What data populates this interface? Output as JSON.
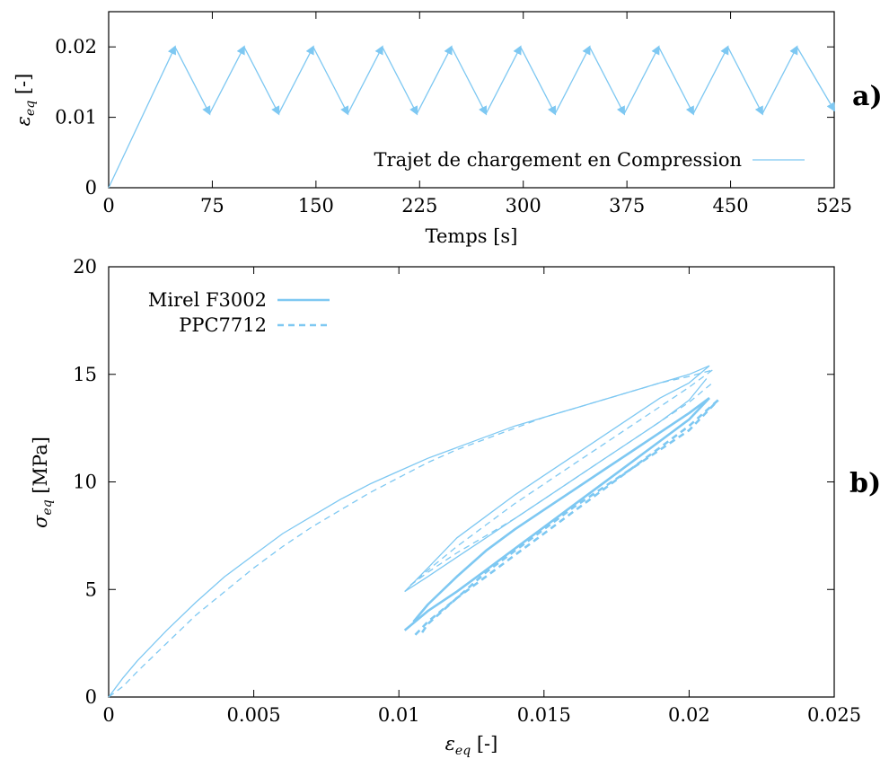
{
  "chart_data": [
    {
      "panel_label": "a)",
      "type": "line",
      "xlabel": "Temps [s]",
      "ylabel": "ε_eq [-]",
      "xlim": [
        0,
        525
      ],
      "ylim": [
        0,
        0.025
      ],
      "xticks": [
        "0",
        "75",
        "150",
        "225",
        "300",
        "375",
        "450",
        "525"
      ],
      "yticks": [
        "0",
        "0.01",
        "0.02"
      ],
      "grid": false,
      "legend_position": "bottom-right",
      "color": "#7EC8F2",
      "series": [
        {
          "name": "Trajet de chargement en Compression",
          "style": "solid-arrows",
          "x": [
            0,
            48,
            73,
            98,
            123,
            148,
            173,
            198,
            223,
            248,
            273,
            298,
            323,
            348,
            373,
            398,
            423,
            448,
            473,
            498,
            525
          ],
          "y": [
            0,
            0.02,
            0.0105,
            0.02,
            0.0105,
            0.02,
            0.0105,
            0.02,
            0.0105,
            0.02,
            0.0105,
            0.02,
            0.0105,
            0.02,
            0.0105,
            0.02,
            0.0105,
            0.02,
            0.0105,
            0.02,
            0.011
          ]
        }
      ]
    },
    {
      "panel_label": "b)",
      "type": "line",
      "xlabel": "ε_eq [-]",
      "ylabel": "σ_eq [MPa]",
      "xlim": [
        0,
        0.025
      ],
      "ylim": [
        0,
        20
      ],
      "xticks": [
        "0",
        "0.005",
        "0.01",
        "0.015",
        "0.02",
        "0.025"
      ],
      "yticks": [
        "0",
        "5",
        "10",
        "15",
        "20"
      ],
      "grid": false,
      "legend_position": "top-left",
      "color": "#7EC8F2",
      "series": [
        {
          "name": "Mirel F3002",
          "style": "solid",
          "first_load": {
            "x": [
              0,
              0.0005,
              0.001,
              0.002,
              0.003,
              0.004,
              0.005,
              0.006,
              0.007,
              0.008,
              0.009,
              0.01,
              0.011,
              0.012,
              0.013,
              0.014,
              0.015,
              0.016,
              0.017,
              0.018,
              0.019,
              0.02,
              0.0207
            ],
            "y": [
              0,
              0.9,
              1.7,
              3.1,
              4.4,
              5.6,
              6.6,
              7.6,
              8.4,
              9.2,
              9.9,
              10.5,
              11.1,
              11.6,
              12.1,
              12.6,
              13.0,
              13.4,
              13.8,
              14.2,
              14.6,
              15.0,
              15.4
            ]
          },
          "cycle_1_unload": {
            "x": [
              0.0207,
              0.02,
              0.019,
              0.018,
              0.017,
              0.016,
              0.015,
              0.014,
              0.013,
              0.012,
              0.011,
              0.0102
            ],
            "y": [
              15.4,
              14.6,
              13.9,
              13.0,
              12.1,
              11.2,
              10.3,
              9.4,
              8.4,
              7.4,
              6.0,
              4.9
            ]
          },
          "cycle_1_reload": {
            "x": [
              0.0102,
              0.011,
              0.012,
              0.013,
              0.014,
              0.015,
              0.016,
              0.017,
              0.018,
              0.019,
              0.02,
              0.0206
            ],
            "y": [
              4.9,
              5.6,
              6.5,
              7.4,
              8.3,
              9.2,
              10.1,
              11.0,
              11.9,
              12.8,
              13.8,
              14.8
            ]
          },
          "stabilized_upper": {
            "x": [
              0.0105,
              0.011,
              0.012,
              0.013,
              0.014,
              0.015,
              0.016,
              0.017,
              0.018,
              0.019,
              0.02,
              0.0207
            ],
            "y": [
              3.5,
              4.3,
              5.6,
              6.8,
              7.8,
              8.7,
              9.6,
              10.5,
              11.4,
              12.3,
              13.2,
              13.9
            ]
          },
          "stabilized_lower": {
            "x": [
              0.0207,
              0.02,
              0.019,
              0.018,
              0.017,
              0.016,
              0.015,
              0.014,
              0.013,
              0.012,
              0.011,
              0.0102
            ],
            "y": [
              13.9,
              12.9,
              11.9,
              10.9,
              9.9,
              8.9,
              7.9,
              6.9,
              5.9,
              4.9,
              4.0,
              3.1
            ]
          }
        },
        {
          "name": "PPC7712",
          "style": "dashed",
          "first_load": {
            "x": [
              0,
              0.0005,
              0.001,
              0.002,
              0.003,
              0.004,
              0.005,
              0.006,
              0.007,
              0.008,
              0.009,
              0.01,
              0.011,
              0.012,
              0.013,
              0.014,
              0.015,
              0.016,
              0.017,
              0.018,
              0.019,
              0.02,
              0.0208
            ],
            "y": [
              0,
              0.5,
              1.2,
              2.5,
              3.8,
              4.9,
              6.0,
              7.0,
              7.9,
              8.7,
              9.5,
              10.2,
              10.9,
              11.5,
              12.0,
              12.5,
              13.0,
              13.4,
              13.8,
              14.2,
              14.6,
              14.9,
              15.2
            ]
          },
          "cycle_1_unload": {
            "x": [
              0.0208,
              0.02,
              0.019,
              0.018,
              0.017,
              0.016,
              0.015,
              0.014,
              0.013,
              0.012,
              0.011,
              0.0104
            ],
            "y": [
              15.2,
              14.4,
              13.5,
              12.6,
              11.7,
              10.8,
              9.9,
              9.0,
              8.0,
              7.0,
              5.9,
              5.2
            ]
          },
          "cycle_1_reload": {
            "x": [
              0.0104,
              0.011,
              0.012,
              0.013,
              0.014,
              0.015,
              0.016,
              0.017,
              0.018,
              0.019,
              0.02,
              0.0208
            ],
            "y": [
              5.2,
              5.8,
              6.7,
              7.5,
              8.3,
              9.2,
              10.1,
              11.0,
              11.9,
              12.8,
              13.7,
              14.6
            ]
          },
          "stabilized_upper": {
            "x": [
              0.0108,
              0.011,
              0.012,
              0.013,
              0.014,
              0.015,
              0.016,
              0.017,
              0.018,
              0.019,
              0.02,
              0.021
            ],
            "y": [
              3.0,
              3.4,
              4.6,
              5.8,
              6.8,
              7.8,
              8.8,
              9.7,
              10.6,
              11.5,
              12.4,
              13.8
            ]
          },
          "stabilized_lower": {
            "x": [
              0.021,
              0.02,
              0.019,
              0.018,
              0.017,
              0.016,
              0.015,
              0.014,
              0.013,
              0.012,
              0.011,
              0.0105
            ],
            "y": [
              13.8,
              12.6,
              11.6,
              10.6,
              9.6,
              8.6,
              7.6,
              6.6,
              5.6,
              4.6,
              3.5,
              2.8
            ]
          }
        }
      ]
    }
  ]
}
